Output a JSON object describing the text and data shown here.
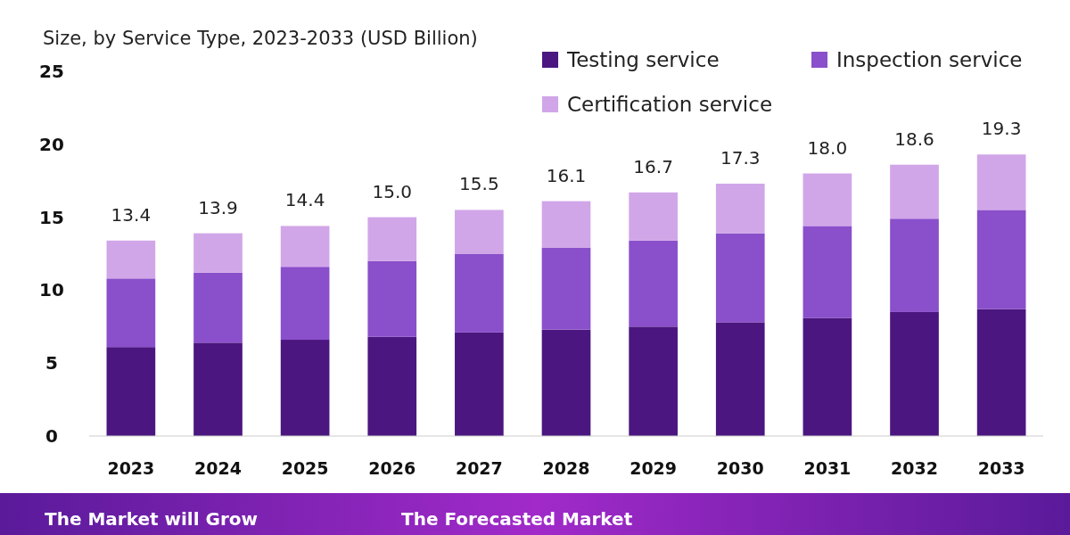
{
  "chart_data": {
    "type": "bar",
    "stacked": true,
    "subtitle": "Size, by Service Type, 2023-2033 (USD Billion)",
    "categories": [
      "2023",
      "2024",
      "2025",
      "2026",
      "2027",
      "2028",
      "2029",
      "2030",
      "2031",
      "2032",
      "2033"
    ],
    "series": [
      {
        "name": "Testing service",
        "color": "#4b1680",
        "values": [
          6.1,
          6.4,
          6.6,
          6.8,
          7.1,
          7.3,
          7.5,
          7.8,
          8.1,
          8.5,
          8.7
        ]
      },
      {
        "name": "Inspection service",
        "color": "#8a4fcb",
        "values": [
          4.7,
          4.8,
          5.0,
          5.2,
          5.4,
          5.6,
          5.9,
          6.1,
          6.3,
          6.4,
          6.8
        ]
      },
      {
        "name": "Certification service",
        "color": "#d1a6e8",
        "values": [
          2.6,
          2.7,
          2.8,
          3.0,
          3.0,
          3.2,
          3.3,
          3.4,
          3.6,
          3.7,
          3.8
        ]
      }
    ],
    "totals": [
      "13.4",
      "13.9",
      "14.4",
      "15.0",
      "15.5",
      "16.1",
      "16.7",
      "17.3",
      "18.0",
      "18.6",
      "19.3"
    ],
    "ylim": [
      0,
      25
    ],
    "yticks": [
      0,
      5,
      10,
      15,
      20,
      25
    ],
    "grid": false,
    "legend": "top right",
    "annotations": [
      "The Market will Grow",
      "The Forecasted Market"
    ]
  }
}
